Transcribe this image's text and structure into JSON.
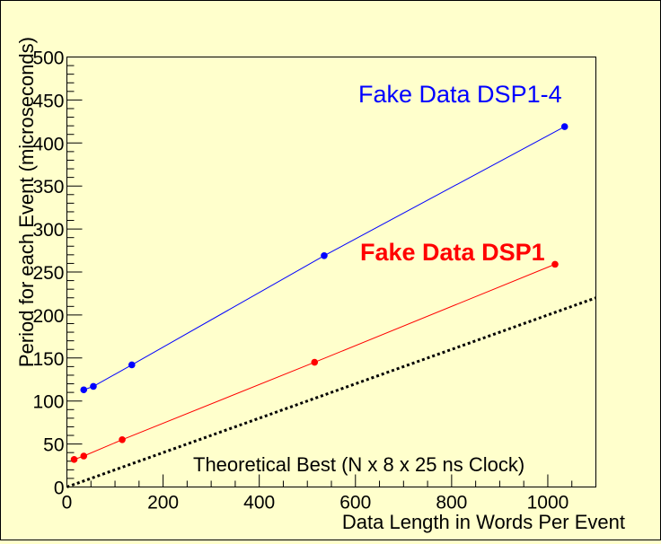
{
  "chart_data": {
    "type": "line",
    "xlabel": "Data Length in Words Per Event",
    "ylabel": "Period for each Event (microseconds)",
    "xlim": [
      0,
      1100
    ],
    "ylim": [
      0,
      500
    ],
    "x_ticks": [
      0,
      200,
      400,
      600,
      800,
      1000
    ],
    "y_ticks": [
      0,
      50,
      100,
      150,
      200,
      250,
      300,
      350,
      400,
      450,
      500
    ],
    "x_tick_labels": [
      "0",
      "200",
      "400",
      "600",
      "800",
      "1000"
    ],
    "y_tick_labels": [
      "0",
      "50",
      "100",
      "150",
      "200",
      "250",
      "300",
      "350",
      "400",
      "450",
      "500"
    ],
    "grid": false,
    "series": [
      {
        "name": "Fake Data DSP1-4",
        "color": "#0000ff",
        "style": "solid",
        "markers": true,
        "x": [
          35,
          55,
          135,
          535,
          1035
        ],
        "y": [
          113,
          117,
          142,
          269,
          419
        ]
      },
      {
        "name": "Fake Data DSP1",
        "color": "#ff0000",
        "style": "solid",
        "markers": true,
        "x": [
          15,
          35,
          115,
          515,
          1015
        ],
        "y": [
          32,
          36,
          55,
          145,
          259
        ]
      },
      {
        "name": "Theoretical Best (N x 8 x 25 ns Clock)",
        "color": "#000000",
        "style": "dotted",
        "markers": false,
        "x": [
          0,
          1100
        ],
        "y": [
          0,
          220
        ]
      }
    ]
  }
}
